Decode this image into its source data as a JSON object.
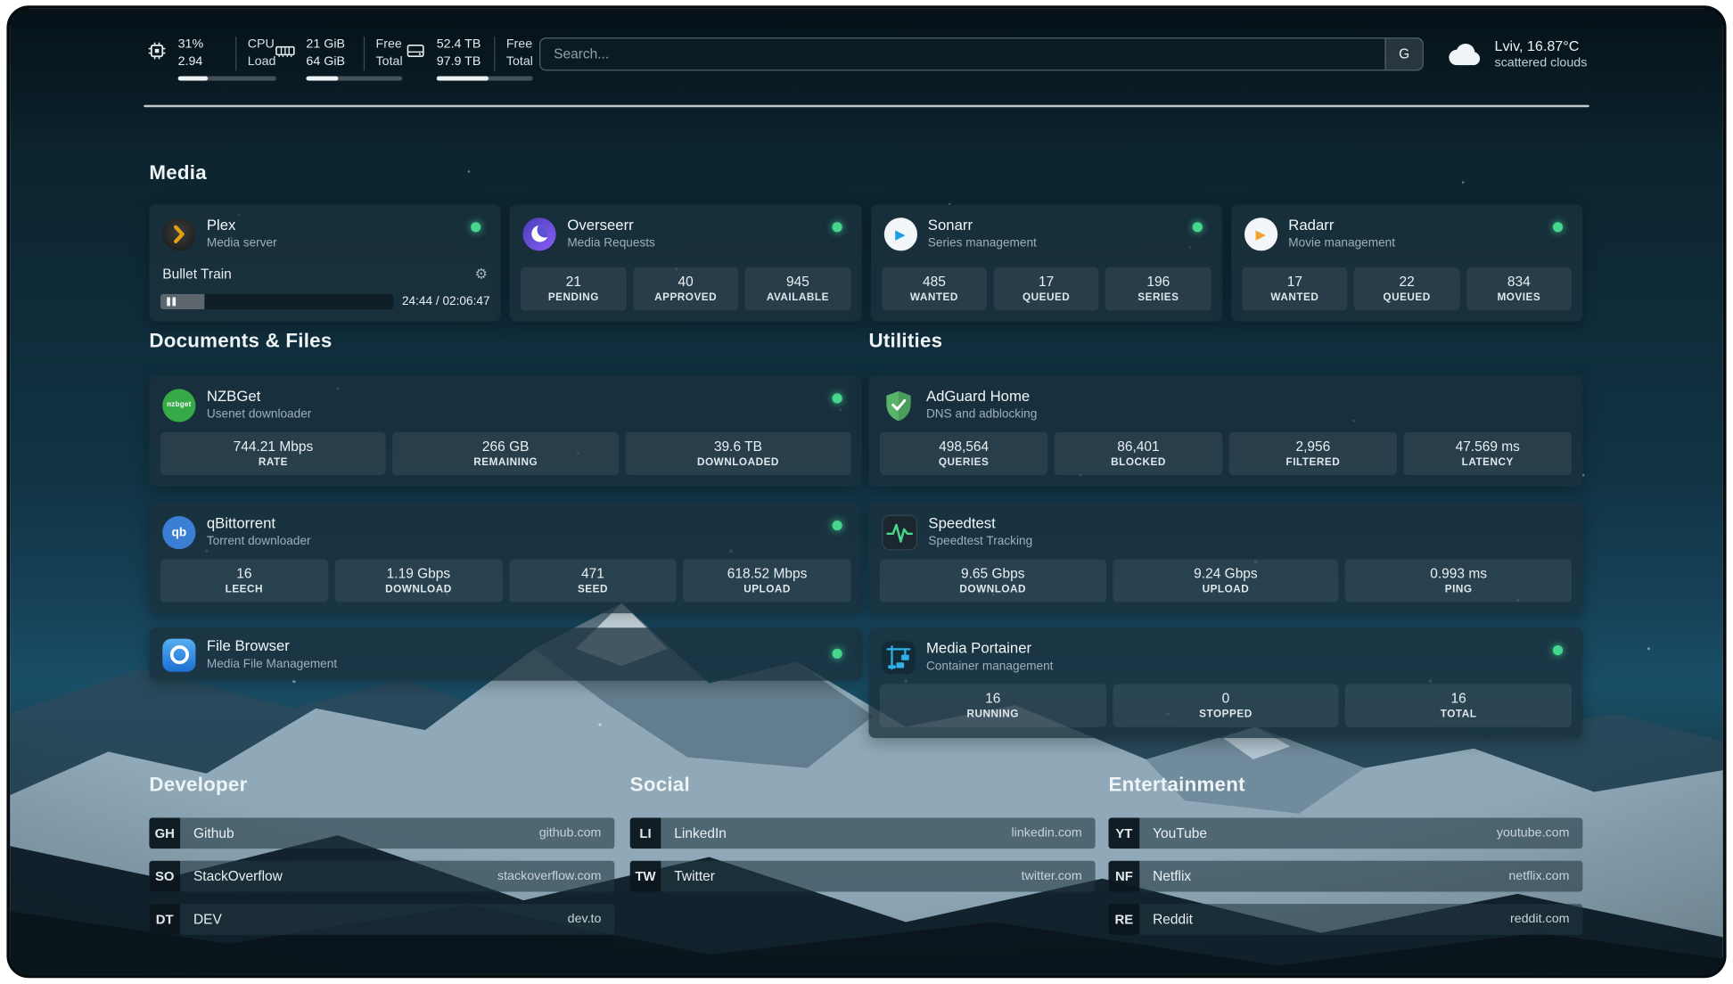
{
  "colors": {
    "online": "#46d68c",
    "plex_amber": "#e5a00d",
    "sonarr_blue": "#1e9fe3",
    "radarr_orange": "#f0a32e",
    "overseerr_purple": "#5b50d6",
    "nzbget_green": "#35aa47",
    "qbittorrent_blue": "#3b7fd4",
    "adguard_green": "#59b46a",
    "portainer_blue": "#2fb1e8"
  },
  "header": {
    "cpu": {
      "value1": "31%",
      "value2": "2.94",
      "label1": "CPU",
      "label2": "Load",
      "progress": 31
    },
    "ram": {
      "value1": "21 GiB",
      "value2": "64 GiB",
      "label1": "Free",
      "label2": "Total",
      "progress": 33
    },
    "disk": {
      "value1": "52.4 TB",
      "value2": "97.9 TB",
      "label1": "Free",
      "label2": "Total",
      "progress": 54
    },
    "search": {
      "placeholder": "Search...",
      "button_label": "G"
    },
    "weather": {
      "location": "Lviv, 16.87°C",
      "condition": "scattered clouds"
    }
  },
  "media": {
    "title": "Media",
    "plex": {
      "name": "Plex",
      "subtitle": "Media server",
      "now_playing": "Bullet Train",
      "time": "24:44 / 02:06:47",
      "progress_percent": 19
    },
    "overseerr": {
      "name": "Overseerr",
      "subtitle": "Media Requests",
      "stats": [
        {
          "value": "21",
          "label": "PENDING"
        },
        {
          "value": "40",
          "label": "APPROVED"
        },
        {
          "value": "945",
          "label": "AVAILABLE"
        }
      ]
    },
    "sonarr": {
      "name": "Sonarr",
      "subtitle": "Series management",
      "stats": [
        {
          "value": "485",
          "label": "WANTED"
        },
        {
          "value": "17",
          "label": "QUEUED"
        },
        {
          "value": "196",
          "label": "SERIES"
        }
      ]
    },
    "radarr": {
      "name": "Radarr",
      "subtitle": "Movie management",
      "stats": [
        {
          "value": "17",
          "label": "WANTED"
        },
        {
          "value": "22",
          "label": "QUEUED"
        },
        {
          "value": "834",
          "label": "MOVIES"
        }
      ]
    }
  },
  "documents": {
    "title": "Documents & Files",
    "nzbget": {
      "name": "NZBGet",
      "subtitle": "Usenet downloader",
      "icon_text": "nzbget",
      "stats": [
        {
          "value": "744.21 Mbps",
          "label": "RATE"
        },
        {
          "value": "266 GB",
          "label": "REMAINING"
        },
        {
          "value": "39.6 TB",
          "label": "DOWNLOADED"
        }
      ]
    },
    "qbittorrent": {
      "name": "qBittorrent",
      "subtitle": "Torrent downloader",
      "icon_text": "qb",
      "stats": [
        {
          "value": "16",
          "label": "LEECH"
        },
        {
          "value": "1.19 Gbps",
          "label": "DOWNLOAD"
        },
        {
          "value": "471",
          "label": "SEED"
        },
        {
          "value": "618.52 Mbps",
          "label": "UPLOAD"
        }
      ]
    },
    "filebrowser": {
      "name": "File Browser",
      "subtitle": "Media File Management"
    }
  },
  "utilities": {
    "title": "Utilities",
    "adguard": {
      "name": "AdGuard Home",
      "subtitle": "DNS and adblocking",
      "stats": [
        {
          "value": "498,564",
          "label": "QUERIES"
        },
        {
          "value": "86,401",
          "label": "BLOCKED"
        },
        {
          "value": "2,956",
          "label": "FILTERED"
        },
        {
          "value": "47.569 ms",
          "label": "LATENCY"
        }
      ]
    },
    "speedtest": {
      "name": "Speedtest",
      "subtitle": "Speedtest Tracking",
      "stats": [
        {
          "value": "9.65 Gbps",
          "label": "DOWNLOAD"
        },
        {
          "value": "9.24 Gbps",
          "label": "UPLOAD"
        },
        {
          "value": "0.993 ms",
          "label": "PING"
        }
      ]
    },
    "portainer": {
      "name": "Media Portainer",
      "subtitle": "Container management",
      "stats": [
        {
          "value": "16",
          "label": "RUNNING"
        },
        {
          "value": "0",
          "label": "STOPPED"
        },
        {
          "value": "16",
          "label": "TOTAL"
        }
      ]
    }
  },
  "links": {
    "developer": {
      "title": "Developer",
      "items": [
        {
          "abbr": "GH",
          "name": "Github",
          "url": "github.com"
        },
        {
          "abbr": "SO",
          "name": "StackOverflow",
          "url": "stackoverflow.com"
        },
        {
          "abbr": "DT",
          "name": "DEV",
          "url": "dev.to"
        }
      ]
    },
    "social": {
      "title": "Social",
      "items": [
        {
          "abbr": "LI",
          "name": "LinkedIn",
          "url": "linkedin.com"
        },
        {
          "abbr": "TW",
          "name": "Twitter",
          "url": "twitter.com"
        }
      ]
    },
    "entertainment": {
      "title": "Entertainment",
      "items": [
        {
          "abbr": "YT",
          "name": "YouTube",
          "url": "youtube.com"
        },
        {
          "abbr": "NF",
          "name": "Netflix",
          "url": "netflix.com"
        },
        {
          "abbr": "RE",
          "name": "Reddit",
          "url": "reddit.com"
        }
      ]
    }
  }
}
